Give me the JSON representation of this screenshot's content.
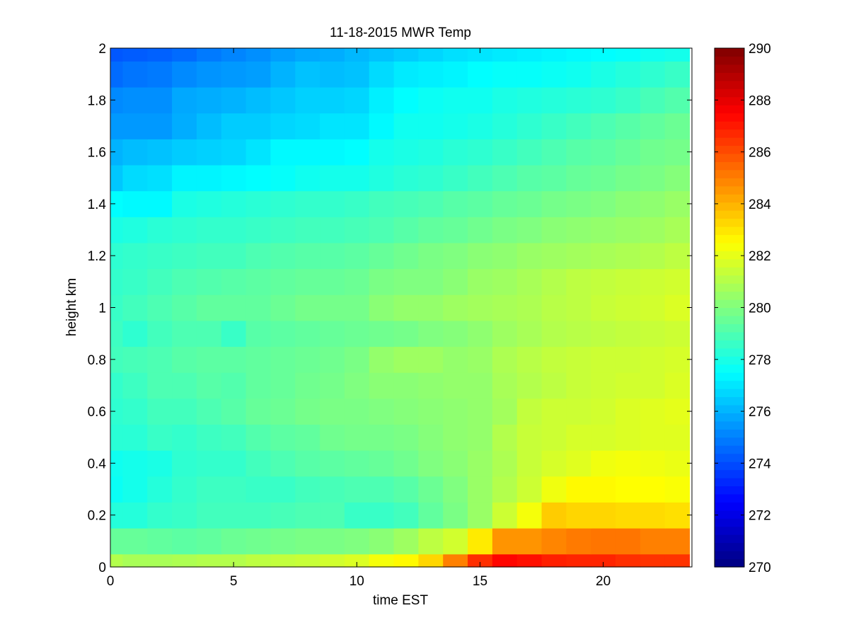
{
  "chart_data": {
    "type": "heatmap",
    "title": "11-18-2015 MWR Temp",
    "xlabel": "time EST",
    "ylabel": "height km",
    "xlim": [
      0,
      23.6
    ],
    "ylim": [
      0,
      2
    ],
    "x_ticks": [
      0,
      5,
      10,
      15,
      20
    ],
    "y_ticks": [
      0,
      0.2,
      0.4,
      0.6,
      0.8,
      1,
      1.2,
      1.4,
      1.6,
      1.8,
      2
    ],
    "colormap": "jet",
    "colorbar": {
      "clim": [
        270,
        290
      ],
      "ticks": [
        270,
        272,
        274,
        276,
        278,
        280,
        282,
        284,
        286,
        288,
        290
      ]
    },
    "x": [
      0,
      1,
      2,
      3,
      4,
      5,
      6,
      7,
      8,
      9,
      10,
      11,
      12,
      13,
      14,
      15,
      16,
      17,
      18,
      19,
      20,
      21,
      22,
      23
    ],
    "y": [
      0,
      0.1,
      0.2,
      0.3,
      0.4,
      0.5,
      0.6,
      0.7,
      0.8,
      0.9,
      1.0,
      1.1,
      1.2,
      1.3,
      1.4,
      1.5,
      1.6,
      1.7,
      1.8,
      1.9,
      2.0
    ],
    "values": [
      [
        281.0,
        280.8,
        280.8,
        280.9,
        281.0,
        281.0,
        281.2,
        281.3,
        281.4,
        281.6,
        281.8,
        282.3,
        282.6,
        283.3,
        285.0,
        286.6,
        287.4,
        287.2,
        286.9,
        286.8,
        286.8,
        286.6,
        286.5,
        286.5
      ],
      [
        279.5,
        279.5,
        279.4,
        279.3,
        279.4,
        279.6,
        279.7,
        279.8,
        279.9,
        279.9,
        280.0,
        280.2,
        280.6,
        281.2,
        281.6,
        282.9,
        284.6,
        284.6,
        284.9,
        285.1,
        285.2,
        285.2,
        285.0,
        285.0
      ],
      [
        278.2,
        278.2,
        278.5,
        278.6,
        278.8,
        278.8,
        278.8,
        278.9,
        279.0,
        279.0,
        278.6,
        278.6,
        278.8,
        279.4,
        279.9,
        280.5,
        281.5,
        282.3,
        283.5,
        283.3,
        283.3,
        283.2,
        283.2,
        283.1
      ],
      [
        277.7,
        277.9,
        278.2,
        278.5,
        278.7,
        278.7,
        278.6,
        278.6,
        278.8,
        278.9,
        279.0,
        279.0,
        279.2,
        279.6,
        280.0,
        280.5,
        281.0,
        281.5,
        282.2,
        282.6,
        282.6,
        282.5,
        282.5,
        282.4
      ],
      [
        277.8,
        277.9,
        278.0,
        278.4,
        278.5,
        278.5,
        278.8,
        279.0,
        279.2,
        279.3,
        279.4,
        279.5,
        279.7,
        280.0,
        280.2,
        280.5,
        280.9,
        281.4,
        281.7,
        281.9,
        282.2,
        282.3,
        282.2,
        282.1
      ],
      [
        278.3,
        278.3,
        278.6,
        278.5,
        278.7,
        278.8,
        279.1,
        279.3,
        279.4,
        279.7,
        279.8,
        279.8,
        279.9,
        280.1,
        280.3,
        280.4,
        281.0,
        281.4,
        281.5,
        281.7,
        281.7,
        281.8,
        281.9,
        281.9
      ],
      [
        278.4,
        278.5,
        278.8,
        278.8,
        279.0,
        279.2,
        279.5,
        279.6,
        279.8,
        279.9,
        279.9,
        280.0,
        280.1,
        280.2,
        280.3,
        280.4,
        280.7,
        281.3,
        281.5,
        281.5,
        281.6,
        281.8,
        281.9,
        282.0
      ],
      [
        278.5,
        278.7,
        279.0,
        279.0,
        279.2,
        279.1,
        279.4,
        279.5,
        279.7,
        279.8,
        280.0,
        280.2,
        280.2,
        280.3,
        280.4,
        280.4,
        280.8,
        281.0,
        281.2,
        281.4,
        281.5,
        281.6,
        281.6,
        281.8
      ],
      [
        278.8,
        278.9,
        279.0,
        279.2,
        279.3,
        279.3,
        279.4,
        279.5,
        279.6,
        279.7,
        279.9,
        280.4,
        280.6,
        280.6,
        280.4,
        280.5,
        280.9,
        281.1,
        281.3,
        281.4,
        281.5,
        281.5,
        281.6,
        281.7
      ],
      [
        278.7,
        278.4,
        278.8,
        279.0,
        279.0,
        278.6,
        279.2,
        279.3,
        279.4,
        279.5,
        279.6,
        279.7,
        279.8,
        280.0,
        280.1,
        280.3,
        280.6,
        280.8,
        281.0,
        281.1,
        281.2,
        281.3,
        281.4,
        281.5
      ],
      [
        278.6,
        278.8,
        279.0,
        279.2,
        279.4,
        279.4,
        279.4,
        279.6,
        279.8,
        279.8,
        279.8,
        280.2,
        280.4,
        280.4,
        280.6,
        280.7,
        280.8,
        280.9,
        281.1,
        281.2,
        281.4,
        281.5,
        281.6,
        281.8
      ],
      [
        278.5,
        278.6,
        278.8,
        279.0,
        279.1,
        279.2,
        279.3,
        279.4,
        279.5,
        279.5,
        279.6,
        279.9,
        280.0,
        280.0,
        280.2,
        280.5,
        280.6,
        280.8,
        281.0,
        281.2,
        281.3,
        281.4,
        281.5,
        281.6
      ],
      [
        278.4,
        278.5,
        278.6,
        278.7,
        278.8,
        278.8,
        279.0,
        279.1,
        279.2,
        279.2,
        279.3,
        279.5,
        279.7,
        279.9,
        280.0,
        280.2,
        280.3,
        280.5,
        280.6,
        280.7,
        280.8,
        280.9,
        281.0,
        281.2
      ],
      [
        278.0,
        278.1,
        278.3,
        278.4,
        278.5,
        278.5,
        278.6,
        278.7,
        278.8,
        278.8,
        278.9,
        279.0,
        279.2,
        279.4,
        279.5,
        279.7,
        279.9,
        280.0,
        280.2,
        280.3,
        280.4,
        280.5,
        280.6,
        280.8
      ],
      [
        277.5,
        277.4,
        277.4,
        278.0,
        278.1,
        278.2,
        278.3,
        278.4,
        278.5,
        278.5,
        278.6,
        278.8,
        278.9,
        279.0,
        279.2,
        279.3,
        279.5,
        279.6,
        279.8,
        279.9,
        280.0,
        280.2,
        280.3,
        280.5
      ],
      [
        276.4,
        276.8,
        276.9,
        277.3,
        277.3,
        277.4,
        277.5,
        277.6,
        277.8,
        277.9,
        277.9,
        278.1,
        278.3,
        278.4,
        278.6,
        278.8,
        279.0,
        279.2,
        279.3,
        279.5,
        279.6,
        279.8,
        279.9,
        280.1
      ],
      [
        276.0,
        276.2,
        276.3,
        276.5,
        276.6,
        276.7,
        277.0,
        277.4,
        277.4,
        277.4,
        277.5,
        277.9,
        278.0,
        278.1,
        278.3,
        278.4,
        278.6,
        278.8,
        279.0,
        279.2,
        279.3,
        279.5,
        279.7,
        279.8
      ],
      [
        275.5,
        275.5,
        275.5,
        275.9,
        276.2,
        276.5,
        276.5,
        276.7,
        276.8,
        277.0,
        277.0,
        277.4,
        277.8,
        277.8,
        277.9,
        278.0,
        278.2,
        278.4,
        278.6,
        278.8,
        279.0,
        279.2,
        279.4,
        279.6
      ],
      [
        275.2,
        275.3,
        275.3,
        275.8,
        275.9,
        276.0,
        276.2,
        276.4,
        276.6,
        276.6,
        276.7,
        277.2,
        277.5,
        277.7,
        277.8,
        277.8,
        278.0,
        278.1,
        278.2,
        278.3,
        278.4,
        278.6,
        278.9,
        279.1
      ],
      [
        274.6,
        274.8,
        274.9,
        275.2,
        275.4,
        275.5,
        275.6,
        276.0,
        276.3,
        276.2,
        276.3,
        276.8,
        277.1,
        277.2,
        277.3,
        277.5,
        277.6,
        277.6,
        277.7,
        277.8,
        278.0,
        278.2,
        278.4,
        278.6
      ],
      [
        274.2,
        274.3,
        274.4,
        274.6,
        274.9,
        275.1,
        275.3,
        275.6,
        275.8,
        275.9,
        276.1,
        276.3,
        276.5,
        276.7,
        276.9,
        277.0,
        277.1,
        277.2,
        277.3,
        277.4,
        277.5,
        277.6,
        277.8,
        277.9
      ]
    ]
  }
}
